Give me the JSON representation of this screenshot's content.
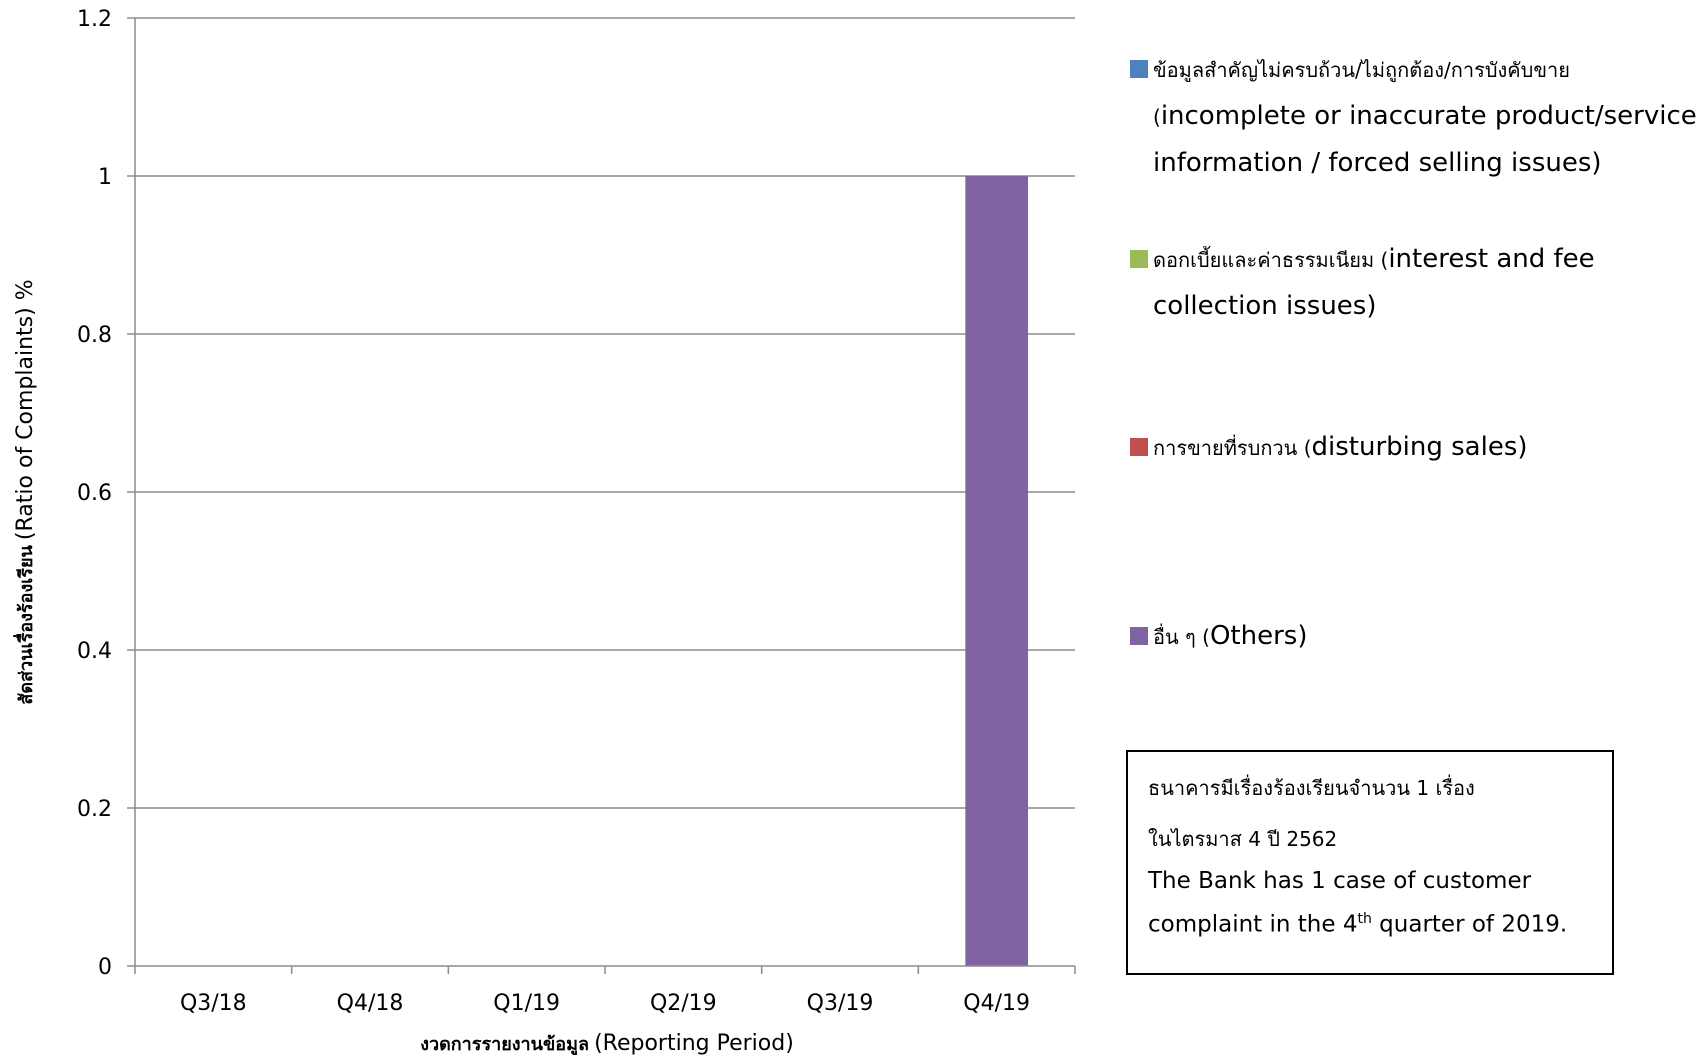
{
  "chart_data": {
    "type": "bar",
    "categories": [
      "Q3/18",
      "Q4/18",
      "Q1/19",
      "Q2/19",
      "Q3/19",
      "Q4/19"
    ],
    "series": [
      {
        "name": "ข้อมูลสำคัญไม่ครบถ้วน/ไม่ถูกต้อง/การบังคับขาย (incomplete or inaccurate product/service information / forced selling issues)",
        "color": "#4F81BD",
        "values": [
          0,
          0,
          0,
          0,
          0,
          0
        ]
      },
      {
        "name": "ดอกเบี้ยและค่าธรรมเนียม (interest and fee collection issues)",
        "color": "#9BBB59",
        "values": [
          0,
          0,
          0,
          0,
          0,
          0
        ]
      },
      {
        "name": "การขายที่รบกวน (disturbing sales)",
        "color": "#C0504D",
        "values": [
          0,
          0,
          0,
          0,
          0,
          0
        ]
      },
      {
        "name": "อื่น ๆ (Others)",
        "color": "#8064A2",
        "values": [
          0,
          0,
          0,
          0,
          0,
          1
        ]
      }
    ],
    "stacked": true,
    "ylim": [
      0,
      1.2
    ],
    "yticks": [
      "0",
      "0.2",
      "0.4",
      "0.6",
      "0.8",
      "1",
      "1.2"
    ],
    "ylabel_thai": "สัดส่วนเรื่องร้องเรียน",
    "ylabel_en": "(Ratio of Complaints) %",
    "xlabel_thai": "งวดการรายงานข้อมูล",
    "xlabel_en": "(Reporting Period)",
    "grid": true,
    "legend_position": "right"
  },
  "legend": {
    "items": [
      {
        "thai": "ข้อมูลสำคัญไม่ครบถ้วน/ไม่ถูกต้อง/การบังคับขาย",
        "open": "(",
        "en": "incomplete or inaccurate product/service information / forced selling issues)",
        "color": "#4F81BD"
      },
      {
        "thai": "ดอกเบี้ยและค่าธรรมเนียม",
        "open": " (",
        "en": "interest and fee collection issues)",
        "color": "#9BBB59"
      },
      {
        "thai": "การขายที่รบกวน",
        "open": " (",
        "en": "disturbing sales)",
        "color": "#C0504D"
      },
      {
        "thai": "อื่น ๆ",
        "open": " (",
        "en": "Others)",
        "color": "#8064A2"
      }
    ]
  },
  "note": {
    "thai_line1": "ธนาคารมีเรื่องร้องเรียนจำนวน 1 เรื่อง",
    "thai_line2": "ในไตรมาส 4 ปี 2562",
    "en_part1": "The Bank has 1 case of customer complaint in the 4",
    "en_sup": "th",
    "en_part2": " quarter of 2019."
  }
}
